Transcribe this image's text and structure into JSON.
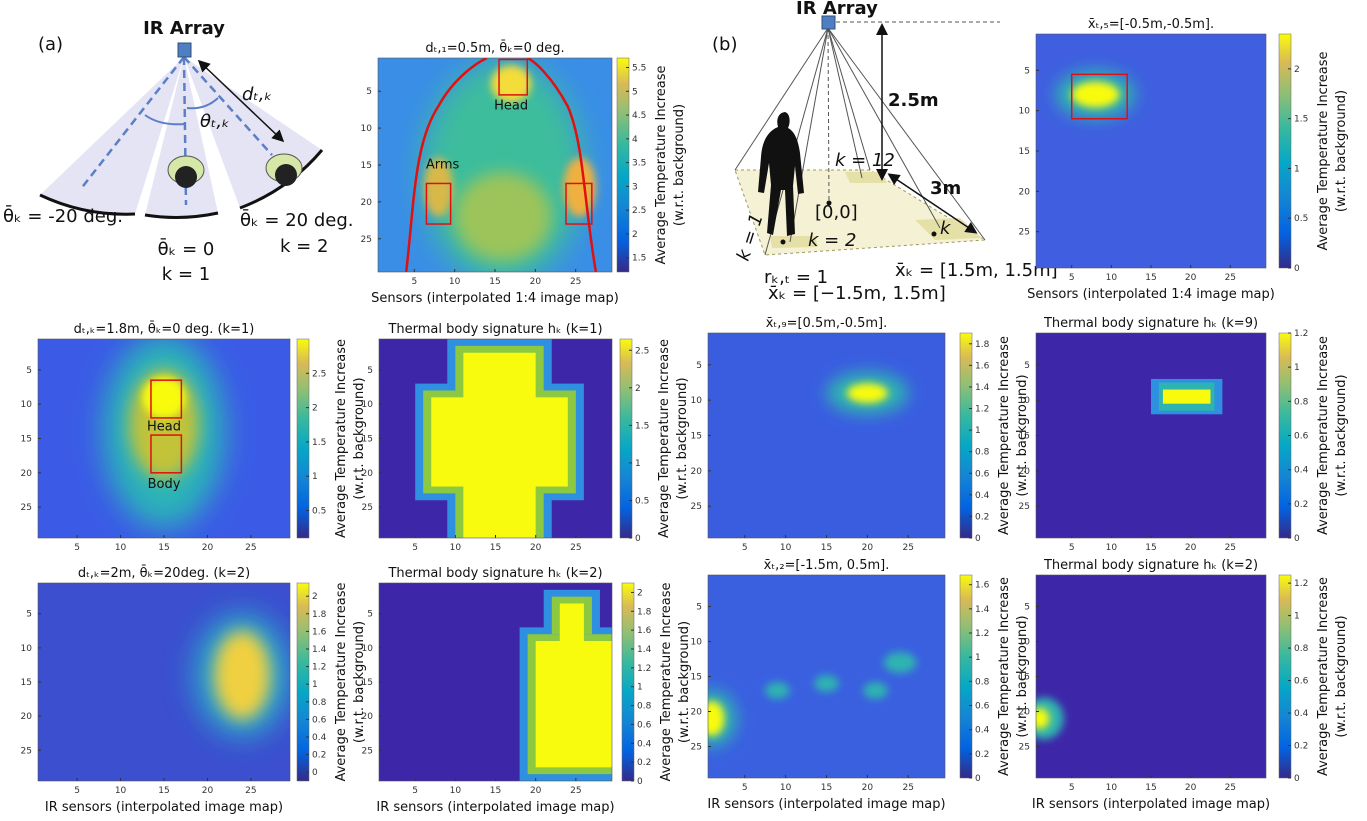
{
  "diagram_a": {
    "label": "(a)",
    "device": "IR Array",
    "distance": "dₜ,ₖ",
    "angle": "θₜ,ₖ",
    "left_sector": "θ̄ₖ = -20 deg.",
    "center_sector": "θ̄ₖ = 0",
    "center_k": "k = 1",
    "right_sector": "θ̄ₖ = 20 deg.",
    "right_k": "k = 2"
  },
  "diagram_b": {
    "label": "(b)",
    "device": "IR Array",
    "height": "2.5m",
    "width": "3m",
    "k12": "k = 12",
    "origin": "[0,0]",
    "k2": "k = 2",
    "k1": "k = 1",
    "k": "k",
    "r": "rₖ,ₜ = 1",
    "x_left": "x̄ₖ = [−1.5m, 1.5m]",
    "x_right": "x̄ₖ = [1.5m, 1.5m]"
  },
  "chart_data": [
    {
      "type": "heatmap",
      "title": "dₜ,₁=0.5m, θ̄ₖ=0 deg.",
      "xlabel": "Sensors (interpolated 1:4 image map)",
      "colorbar_label": [
        "Average Temperature Increase",
        "(w.r.t. background)"
      ],
      "annotations": [
        "Head",
        "Arms"
      ],
      "xlim": [
        0.5,
        29.5
      ],
      "ylim": [
        29.5,
        0.5
      ],
      "xticks": [
        5,
        10,
        15,
        20,
        25
      ],
      "yticks": [
        5,
        10,
        15,
        20,
        25
      ],
      "clim": [
        1.2,
        5.7
      ],
      "cticks": [
        1.5,
        2,
        2.5,
        3,
        3.5,
        4,
        4.5,
        5,
        5.5
      ]
    },
    {
      "type": "heatmap",
      "title": "dₜ,ₖ=1.8m, θ̄ₖ=0 deg. (k=1)",
      "colorbar_label": [
        "Average Temperature Increase",
        "(w.r.t. background)"
      ],
      "annotations": [
        "Head",
        "Body"
      ],
      "xlim": [
        0.5,
        29.5
      ],
      "ylim": [
        29.5,
        0.5
      ],
      "xticks": [
        5,
        10,
        15,
        20,
        25
      ],
      "yticks": [
        5,
        10,
        15,
        20,
        25
      ],
      "clim": [
        0.1,
        3
      ],
      "cticks": [
        0.5,
        1,
        1.5,
        2,
        2.5
      ]
    },
    {
      "type": "heatmap",
      "title": "Thermal body signature hₖ (k=1)",
      "colorbar_label": [
        "Average Temperature Increase",
        "(w.r.t. background)"
      ],
      "xlim": [
        0.5,
        29.5
      ],
      "ylim": [
        29.5,
        0.5
      ],
      "xticks": [
        5,
        10,
        15,
        20,
        25
      ],
      "yticks": [
        5,
        10,
        15,
        20,
        25
      ],
      "clim": [
        0,
        2.65
      ],
      "cticks": [
        0,
        0.5,
        1,
        1.5,
        2,
        2.5
      ]
    },
    {
      "type": "heatmap",
      "title": "dₜ,ₖ=2m, θ̄ₖ=20deg. (k=2)",
      "xlabel": "IR sensors (interpolated image map)",
      "colorbar_label": [
        "Average Temperature Increase",
        "(w.r.t. background)"
      ],
      "xlim": [
        0.5,
        29.5
      ],
      "ylim": [
        29.5,
        0.5
      ],
      "xticks": [
        5,
        10,
        15,
        20,
        25
      ],
      "yticks": [
        5,
        10,
        15,
        20,
        25
      ],
      "clim": [
        -0.1,
        2.15
      ],
      "cticks": [
        0,
        0.2,
        0.4,
        0.6,
        0.8,
        1,
        1.2,
        1.4,
        1.6,
        1.8,
        2
      ]
    },
    {
      "type": "heatmap",
      "title": "Thermal body signature hₖ (k=2)",
      "xlabel": "IR sensors (interpolated image map)",
      "colorbar_label": [
        "Average Temperature Increase",
        "(w.r.t. background)"
      ],
      "xlim": [
        0.5,
        29.5
      ],
      "ylim": [
        29.5,
        0.5
      ],
      "xticks": [
        5,
        10,
        15,
        20,
        25
      ],
      "yticks": [
        5,
        10,
        15,
        20,
        25
      ],
      "clim": [
        0,
        2.1
      ],
      "cticks": [
        0,
        0.2,
        0.4,
        0.6,
        0.8,
        1,
        1.2,
        1.4,
        1.6,
        1.8,
        2
      ]
    },
    {
      "type": "heatmap",
      "title": "x̄ₜ,₅=[-0.5m,-0.5m].",
      "xlabel": "Sensors (interpolated 1:4 image map)",
      "colorbar_label": [
        "Average Temperature Increase",
        "(w.r.t. background)"
      ],
      "xlim": [
        0.5,
        29.5
      ],
      "ylim": [
        29.5,
        0.5
      ],
      "xticks": [
        5,
        10,
        15,
        20,
        25
      ],
      "yticks": [
        5,
        10,
        15,
        20,
        25
      ],
      "clim": [
        0,
        2.35
      ],
      "cticks": [
        0,
        0.5,
        1,
        1.5,
        2
      ]
    },
    {
      "type": "heatmap",
      "title": "x̄ₜ,₉=[0.5m,-0.5m].",
      "colorbar_label": [
        "Average Temperature Increase",
        "(w.r.t. background)"
      ],
      "xlim": [
        0.5,
        29.5
      ],
      "ylim": [
        29.5,
        0.5
      ],
      "xticks": [
        5,
        10,
        15,
        20,
        25
      ],
      "yticks": [
        5,
        10,
        15,
        20,
        25
      ],
      "clim": [
        0,
        1.9
      ],
      "cticks": [
        0,
        0.2,
        0.4,
        0.6,
        0.8,
        1,
        1.2,
        1.4,
        1.6,
        1.8
      ]
    },
    {
      "type": "heatmap",
      "title": "Thermal body signature hₖ (k=9)",
      "colorbar_label": [
        "Average Temperature Increase",
        "(w.r.t. background)"
      ],
      "xlim": [
        0.5,
        29.5
      ],
      "ylim": [
        29.5,
        0.5
      ],
      "xticks": [
        5,
        10,
        15,
        20,
        25
      ],
      "yticks": [
        5,
        10,
        15,
        20,
        25
      ],
      "clim": [
        0,
        1.2
      ],
      "cticks": [
        0,
        0.2,
        0.4,
        0.6,
        0.8,
        1,
        1.2
      ]
    },
    {
      "type": "heatmap",
      "title": "x̄ₜ,₂=[-1.5m, 0.5m].",
      "xlabel": "IR sensors (interpolated image map)",
      "colorbar_label": [
        "Average Temperature Increase",
        "(w.r.t. background)"
      ],
      "xlim": [
        0.5,
        29.5
      ],
      "ylim": [
        29.5,
        0.5
      ],
      "xticks": [
        5,
        10,
        15,
        20,
        25
      ],
      "yticks": [
        5,
        10,
        15,
        20,
        25
      ],
      "clim": [
        0,
        1.68
      ],
      "cticks": [
        0,
        0.2,
        0.4,
        0.6,
        0.8,
        1,
        1.2,
        1.4,
        1.6
      ]
    },
    {
      "type": "heatmap",
      "title": "Thermal body signature hₖ (k=2)",
      "xlabel": "IR sensors (interpolated image map)",
      "colorbar_label": [
        "Average Temperature Increase",
        "(w.r.t. background)"
      ],
      "xlim": [
        0.5,
        29.5
      ],
      "ylim": [
        29.5,
        0.5
      ],
      "xticks": [
        5,
        10,
        15,
        20,
        25
      ],
      "yticks": [
        5,
        10,
        15,
        20,
        25
      ],
      "clim": [
        0,
        1.25
      ],
      "cticks": [
        0,
        0.2,
        0.4,
        0.6,
        0.8,
        1,
        1.2
      ]
    }
  ]
}
